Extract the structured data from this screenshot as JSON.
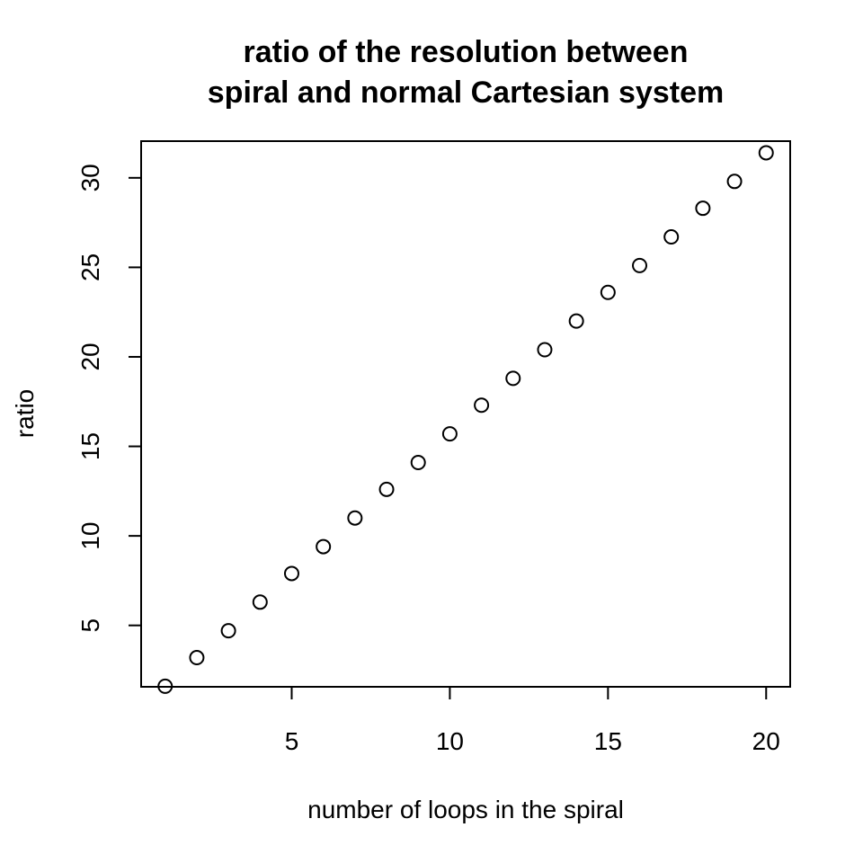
{
  "chart_data": {
    "type": "scatter",
    "title": [
      "ratio of the resolution between",
      "spiral and normal Cartesian system"
    ],
    "xlabel": "number of loops in the spiral",
    "ylabel": "ratio",
    "xlim": [
      0.24,
      20.76
    ],
    "ylim": [
      1.57,
      32.05
    ],
    "x_ticks": [
      5,
      10,
      15,
      20
    ],
    "y_ticks": [
      5,
      10,
      15,
      20,
      25,
      30
    ],
    "marker": "open-circle",
    "grid": false,
    "x": [
      1,
      2,
      3,
      4,
      5,
      6,
      7,
      8,
      9,
      10,
      11,
      12,
      13,
      14,
      15,
      16,
      17,
      18,
      19,
      20
    ],
    "y": [
      1.6,
      3.2,
      4.7,
      6.3,
      7.9,
      9.4,
      11.0,
      12.6,
      14.1,
      15.7,
      17.3,
      18.8,
      20.4,
      22.0,
      23.6,
      25.1,
      26.7,
      28.3,
      29.8,
      31.4
    ]
  }
}
